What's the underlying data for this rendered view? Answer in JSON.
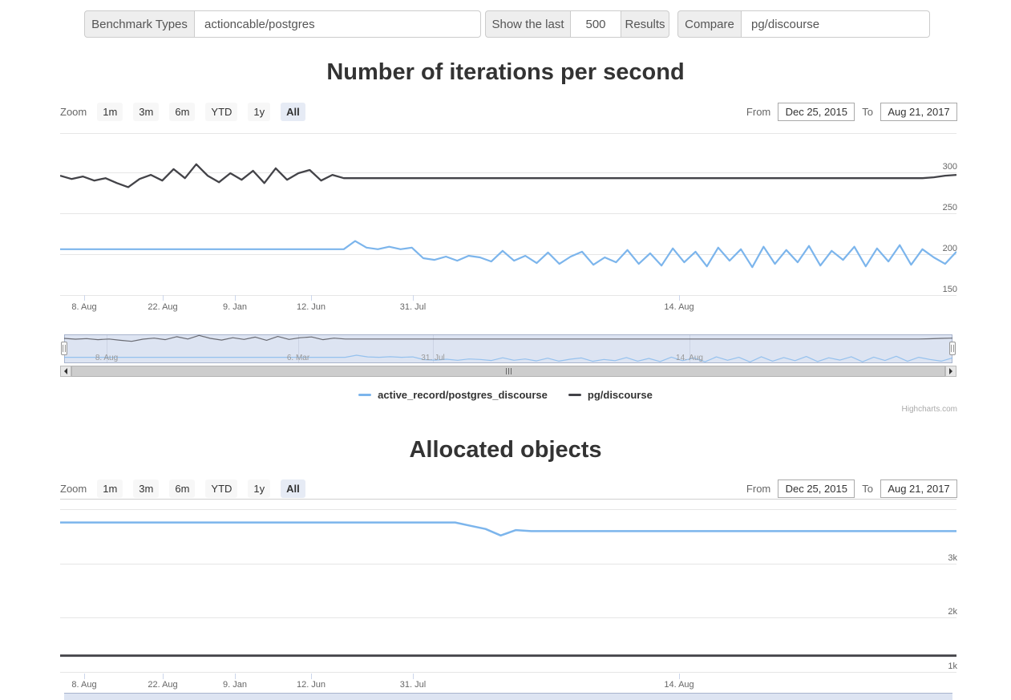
{
  "toolbar": {
    "benchmark_types_label": "Benchmark Types",
    "benchmark_types_value": "actioncable/postgres",
    "show_last_label": "Show the last",
    "show_last_value": "500",
    "results_label": "Results",
    "compare_label": "Compare",
    "compare_value": "pg/discourse"
  },
  "range_selector": {
    "zoom_label": "Zoom",
    "buttons": [
      "1m",
      "3m",
      "6m",
      "YTD",
      "1y",
      "All"
    ],
    "selected": "All",
    "from_label": "From",
    "from_value": "Dec 25, 2015",
    "to_label": "To",
    "to_value": "Aug 21, 2017"
  },
  "sections": [
    {
      "title": "Number of iterations per second"
    },
    {
      "title": "Allocated objects"
    }
  ],
  "x_axis_labels": [
    "8. Aug",
    "22. Aug",
    "9. Jan",
    "12. Jun",
    "31. Jul",
    "14. Aug"
  ],
  "navigator_labels": [
    "8. Aug",
    "6. Mar",
    "31. Jul",
    "14. Aug"
  ],
  "credits": "Highcharts.com",
  "colors": {
    "series_blue": "#7cb5ec",
    "series_dark": "#434348",
    "selected_button_bg": "#e6ebf5",
    "navigator_mask": "rgba(102,133,194,0.22)",
    "gridline": "#e6e6e6"
  },
  "chart_data": [
    {
      "type": "line",
      "title": "Number of iterations per second",
      "xlabel": "",
      "ylabel": "",
      "x_tick_labels": [
        "8. Aug",
        "22. Aug",
        "9. Jan",
        "12. Jun",
        "31. Jul",
        "14. Aug"
      ],
      "x_range": [
        "Dec 25, 2015",
        "Aug 21, 2017"
      ],
      "ylim": [
        143,
        354
      ],
      "yticks": [
        150,
        200,
        250,
        300,
        350
      ],
      "ytick_labels": [
        "150",
        "200",
        "250",
        "300",
        ""
      ],
      "grid": true,
      "legend_position": "bottom",
      "series": [
        {
          "name": "active_record/postgres_discourse",
          "color": "#7cb5ec",
          "values": [
            206,
            206,
            206,
            206,
            206,
            206,
            206,
            206,
            206,
            206,
            206,
            206,
            206,
            206,
            206,
            206,
            206,
            206,
            206,
            206,
            206,
            206,
            206,
            206,
            206,
            206,
            216,
            208,
            206,
            209,
            206,
            208,
            195,
            193,
            197,
            192,
            198,
            196,
            191,
            204,
            192,
            198,
            189,
            202,
            188,
            197,
            203,
            187,
            196,
            190,
            205,
            188,
            201,
            186,
            207,
            190,
            203,
            185,
            208,
            192,
            206,
            184,
            209,
            188,
            205,
            190,
            210,
            186,
            204,
            193,
            209,
            185,
            207,
            191,
            211,
            187,
            206,
            196,
            188,
            203
          ]
        },
        {
          "name": "pg/discourse",
          "color": "#434348",
          "values": [
            296,
            292,
            295,
            290,
            293,
            287,
            282,
            292,
            297,
            290,
            304,
            293,
            310,
            296,
            288,
            299,
            291,
            302,
            287,
            305,
            291,
            299,
            303,
            290,
            297,
            293,
            293,
            293,
            293,
            293,
            293,
            293,
            293,
            293,
            293,
            293,
            293,
            293,
            293,
            293,
            293,
            293,
            293,
            293,
            293,
            293,
            293,
            293,
            293,
            293,
            293,
            293,
            293,
            293,
            293,
            293,
            293,
            293,
            293,
            293,
            293,
            293,
            293,
            293,
            293,
            293,
            293,
            293,
            293,
            293,
            293,
            293,
            293,
            293,
            293,
            293,
            293,
            294,
            296,
            297
          ]
        }
      ]
    },
    {
      "type": "line",
      "title": "Allocated objects",
      "xlabel": "",
      "ylabel": "",
      "x_tick_labels": [
        "8. Aug",
        "22. Aug",
        "9. Jan",
        "12. Jun",
        "31. Jul",
        "14. Aug"
      ],
      "x_range": [
        "Dec 25, 2015",
        "Aug 21, 2017"
      ],
      "ylim": [
        970,
        4080
      ],
      "yticks": [
        1000,
        2000,
        3000,
        4000
      ],
      "ytick_labels": [
        "1k",
        "2k",
        "3k",
        ""
      ],
      "grid": true,
      "legend_position": "none",
      "series": [
        {
          "name": "active_record/postgres_discourse",
          "color": "#7cb5ec",
          "values": [
            3760,
            3760,
            3760,
            3760,
            3760,
            3760,
            3760,
            3760,
            3760,
            3760,
            3760,
            3760,
            3760,
            3760,
            3760,
            3760,
            3760,
            3760,
            3760,
            3760,
            3760,
            3760,
            3760,
            3760,
            3760,
            3760,
            3760,
            3700,
            3640,
            3520,
            3620,
            3600,
            3600,
            3600,
            3600,
            3600,
            3600,
            3600,
            3600,
            3600,
            3600,
            3600,
            3600,
            3600,
            3600,
            3600,
            3600,
            3600,
            3600,
            3600,
            3600,
            3600,
            3600,
            3600,
            3600,
            3600,
            3600,
            3600,
            3600,
            3600
          ]
        },
        {
          "name": "pg/discourse",
          "color": "#434348",
          "values": [
            1300,
            1300,
            1300,
            1300,
            1300,
            1300,
            1300,
            1300,
            1300,
            1300,
            1300,
            1300,
            1300,
            1300,
            1300,
            1300,
            1300,
            1300,
            1300,
            1300,
            1300,
            1300,
            1300,
            1300,
            1300,
            1300,
            1300,
            1300,
            1300,
            1300,
            1300,
            1300,
            1300,
            1300,
            1300,
            1300,
            1300,
            1300,
            1300,
            1300,
            1300,
            1300,
            1300,
            1300,
            1300,
            1300,
            1300,
            1300,
            1300,
            1300,
            1300,
            1300,
            1300,
            1300,
            1300,
            1300,
            1300,
            1300,
            1300,
            1300
          ]
        }
      ]
    }
  ]
}
